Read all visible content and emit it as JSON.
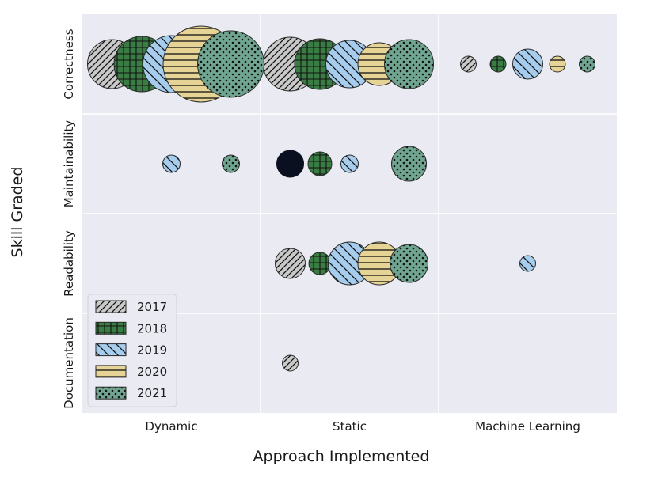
{
  "chart_data": {
    "type": "scatter",
    "subtype": "bubble",
    "xlabel": "Approach Implemented",
    "ylabel": "Skill Graded",
    "x_categories": [
      "Dynamic",
      "Static",
      "Machine Learning"
    ],
    "y_categories": [
      "Correctness",
      "Maintainability",
      "Readability",
      "Documentation"
    ],
    "grid": true,
    "legend_placement": "bottom-left",
    "series": [
      {
        "name": "2017",
        "color": "#c9c9c9",
        "pattern": "diagonal-hatch",
        "offset": -2
      },
      {
        "name": "2018",
        "color": "#3a7d44",
        "pattern": "grid-hatch",
        "offset": -1
      },
      {
        "name": "2019",
        "color": "#a6cdee",
        "pattern": "backslash-hatch",
        "offset": 0
      },
      {
        "name": "2020",
        "color": "#e5d495",
        "pattern": "horizontal-hatch",
        "offset": 1
      },
      {
        "name": "2021",
        "color": "#6fa591",
        "pattern": "dots",
        "offset": 2
      }
    ],
    "points": [
      {
        "series": "2017",
        "x": "Dynamic",
        "y": "Correctness",
        "size": 31
      },
      {
        "series": "2018",
        "x": "Dynamic",
        "y": "Correctness",
        "size": 35
      },
      {
        "series": "2019",
        "x": "Dynamic",
        "y": "Correctness",
        "size": 36
      },
      {
        "series": "2020",
        "x": "Dynamic",
        "y": "Correctness",
        "size": 48
      },
      {
        "series": "2021",
        "x": "Dynamic",
        "y": "Correctness",
        "size": 42
      },
      {
        "series": "2019",
        "x": "Dynamic",
        "y": "Maintainability",
        "size": 11
      },
      {
        "series": "2021",
        "x": "Dynamic",
        "y": "Maintainability",
        "size": 11
      },
      {
        "series": "2017",
        "x": "Static",
        "y": "Correctness",
        "size": 34
      },
      {
        "series": "2018",
        "x": "Static",
        "y": "Correctness",
        "size": 32
      },
      {
        "series": "2019",
        "x": "Static",
        "y": "Correctness",
        "size": 30
      },
      {
        "series": "2020",
        "x": "Static",
        "y": "Correctness",
        "size": 27
      },
      {
        "series": "2021",
        "x": "Static",
        "y": "Correctness",
        "size": 31
      },
      {
        "series": "2017",
        "x": "Static",
        "y": "Maintainability",
        "size": 17
      },
      {
        "series": "2018",
        "x": "Static",
        "y": "Maintainability",
        "size": 15
      },
      {
        "series": "2019",
        "x": "Static",
        "y": "Maintainability",
        "size": 11
      },
      {
        "series": "2021",
        "x": "Static",
        "y": "Maintainability",
        "size": 22
      },
      {
        "series": "2017",
        "x": "Static",
        "y": "Readability",
        "size": 19
      },
      {
        "series": "2018",
        "x": "Static",
        "y": "Readability",
        "size": 14
      },
      {
        "series": "2019",
        "x": "Static",
        "y": "Readability",
        "size": 27
      },
      {
        "series": "2020",
        "x": "Static",
        "y": "Readability",
        "size": 27
      },
      {
        "series": "2021",
        "x": "Static",
        "y": "Readability",
        "size": 24
      },
      {
        "series": "2017",
        "x": "Static",
        "y": "Documentation",
        "size": 10
      },
      {
        "series": "2017",
        "x": "Machine Learning",
        "y": "Correctness",
        "size": 10
      },
      {
        "series": "2018",
        "x": "Machine Learning",
        "y": "Correctness",
        "size": 10
      },
      {
        "series": "2019",
        "x": "Machine Learning",
        "y": "Correctness",
        "size": 19
      },
      {
        "series": "2020",
        "x": "Machine Learning",
        "y": "Correctness",
        "size": 10
      },
      {
        "series": "2021",
        "x": "Machine Learning",
        "y": "Correctness",
        "size": 10
      },
      {
        "series": "2019",
        "x": "Machine Learning",
        "y": "Readability",
        "size": 10
      }
    ],
    "notes": "Bubble radius scaled from the 'size' value; Maintainability/Static 2017 bubble drawn in near-black as in the original."
  }
}
